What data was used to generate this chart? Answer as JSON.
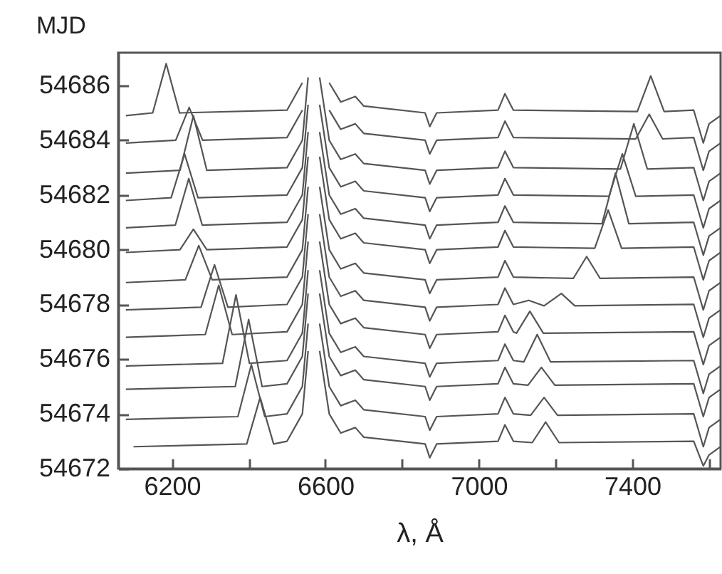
{
  "chart_data": {
    "type": "line",
    "xlabel": "λ, Å",
    "ylabel": "MJD",
    "xlim": [
      6060,
      7630
    ],
    "ylim": [
      54672,
      54687.2
    ],
    "xticks": [
      6200,
      {
        "value": 6400,
        "label": null
      },
      6600,
      {
        "value": 6800,
        "label": null
      },
      7000,
      {
        "value": 7200,
        "label": null
      },
      7400,
      {
        "value": 7600,
        "label": null
      }
    ],
    "yticks": [
      54672,
      54674,
      54676,
      54678,
      54680,
      54682,
      54684,
      54686
    ],
    "grid": false,
    "legend": false,
    "marker": "none",
    "line_style": "solid",
    "series": [
      {
        "color": "#555555",
        "x": [
          6080,
          6150,
          6185,
          6220,
          6500,
          6540,
          6555,
          6567,
          6585,
          6610,
          6640,
          6678,
          6700,
          6860,
          6872,
          6890,
          7050,
          7068,
          7090,
          7413,
          7448,
          7483,
          7560,
          7585,
          7600,
          7630
        ],
        "values": [
          54684.9,
          54685.0,
          54686.8,
          54685.0,
          54685.1,
          54686.1,
          null,
          null,
          null,
          54686.1,
          54685.4,
          54685.6,
          54685.25,
          54685.0,
          54684.5,
          54685.0,
          54685.1,
          54685.7,
          54685.1,
          54685.05,
          54686.35,
          54685.05,
          54685.1,
          54683.9,
          54684.6,
          54684.9
        ]
      },
      {
        "color": "#555555",
        "x": [
          6080,
          6210,
          6245,
          6280,
          6500,
          6540,
          6555,
          6567,
          6585,
          6610,
          6640,
          6678,
          6700,
          6860,
          6872,
          6890,
          7050,
          7068,
          7090,
          7409,
          7444,
          7479,
          7560,
          7585,
          7600,
          7630
        ],
        "values": [
          54683.9,
          54684.0,
          54685.2,
          54684.0,
          54684.1,
          54685.1,
          null,
          null,
          null,
          54685.1,
          54684.4,
          54684.6,
          54684.25,
          54684.0,
          54683.5,
          54684.0,
          54684.1,
          54684.7,
          54684.1,
          54684.05,
          54684.95,
          54684.05,
          54684.1,
          54682.9,
          54683.6,
          54683.9
        ]
      },
      {
        "color": "#555555",
        "x": [
          6080,
          6221,
          6256,
          6291,
          6500,
          6540,
          6555,
          6567,
          6585,
          6610,
          6640,
          6678,
          6700,
          6860,
          6872,
          6890,
          7050,
          7068,
          7090,
          7369,
          7404,
          7439,
          7560,
          7585,
          7600,
          7630
        ],
        "values": [
          54682.8,
          54682.9,
          54684.9,
          54682.9,
          54683.0,
          54684.0,
          54686.3,
          null,
          54686.3,
          54684.0,
          54683.3,
          54683.5,
          54683.15,
          54682.9,
          54682.4,
          54682.9,
          54683.0,
          54683.6,
          54683.0,
          54682.95,
          54684.6,
          54682.95,
          54683.0,
          54681.8,
          54682.5,
          54682.8
        ]
      },
      {
        "color": "#555555",
        "x": [
          6080,
          6198,
          6233,
          6268,
          6500,
          6540,
          6555,
          6567,
          6585,
          6610,
          6640,
          6678,
          6700,
          6860,
          6872,
          6890,
          7050,
          7068,
          7090,
          7339,
          7374,
          7409,
          7560,
          7585,
          7600,
          7630
        ],
        "values": [
          54681.8,
          54681.9,
          54683.5,
          54681.9,
          54682.0,
          54683.0,
          54685.3,
          null,
          54685.3,
          54683.0,
          54682.3,
          54682.5,
          54682.15,
          54681.9,
          54681.4,
          54681.9,
          54682.0,
          54682.6,
          54682.0,
          54681.95,
          54683.5,
          54681.95,
          54682.0,
          54680.8,
          54681.5,
          54681.8
        ]
      },
      {
        "color": "#555555",
        "x": [
          6080,
          6209,
          6244,
          6279,
          6500,
          6540,
          6555,
          6567,
          6585,
          6610,
          6640,
          6678,
          6700,
          6860,
          6872,
          6890,
          7050,
          7068,
          7090,
          7321,
          7356,
          7391,
          7560,
          7585,
          7600,
          7630
        ],
        "values": [
          54680.8,
          54680.9,
          54682.6,
          54680.9,
          54681.0,
          54682.0,
          54684.3,
          null,
          54684.3,
          54682.0,
          54681.3,
          54681.5,
          54681.15,
          54680.9,
          54680.4,
          54680.9,
          54681.0,
          54681.6,
          54681.0,
          54680.95,
          54682.8,
          54680.95,
          54681.0,
          54679.8,
          54680.5,
          54680.8
        ]
      },
      {
        "color": "#555555",
        "x": [
          6080,
          6221,
          6256,
          6291,
          6500,
          6540,
          6555,
          6567,
          6585,
          6610,
          6640,
          6678,
          6700,
          6860,
          6872,
          6890,
          7050,
          7068,
          7090,
          7302,
          7337,
          7372,
          7560,
          7585,
          7600,
          7630
        ],
        "values": [
          54679.9,
          54680.0,
          54680.75,
          54680.0,
          54680.1,
          54681.1,
          54683.4,
          null,
          54683.4,
          54681.1,
          54680.4,
          54680.6,
          54680.25,
          54680.0,
          54679.5,
          54680.0,
          54680.1,
          54680.7,
          54680.1,
          54680.05,
          54681.45,
          54680.05,
          54680.1,
          54678.9,
          54679.6,
          54679.9
        ]
      },
      {
        "color": "#555555",
        "x": [
          6080,
          6235,
          6270,
          6305,
          6500,
          6540,
          6555,
          6567,
          6585,
          6610,
          6640,
          6678,
          6700,
          6860,
          6872,
          6890,
          7050,
          7068,
          7090,
          7246,
          7281,
          7316,
          7560,
          7585,
          7600,
          7630
        ],
        "values": [
          54678.8,
          54678.9,
          54680.15,
          54678.9,
          54679.0,
          54680.0,
          54682.3,
          null,
          54682.3,
          54680.0,
          54679.3,
          54679.5,
          54679.15,
          54678.9,
          54678.4,
          54678.9,
          54679.0,
          54679.6,
          54679.0,
          54678.95,
          54679.75,
          54678.95,
          54679.0,
          54677.8,
          54678.5,
          54678.8
        ]
      },
      {
        "color": "#555555",
        "x": [
          6080,
          6276,
          6311,
          6346,
          6500,
          6540,
          6555,
          6567,
          6585,
          6610,
          6640,
          6678,
          6700,
          6860,
          6872,
          6890,
          7050,
          7068,
          7090,
          7130,
          7170,
          7215,
          7250,
          7560,
          7585,
          7600,
          7630
        ],
        "values": [
          54677.8,
          54677.9,
          54679.45,
          54677.9,
          54678.0,
          54679.0,
          54681.3,
          null,
          54681.3,
          54679.0,
          54678.3,
          54678.5,
          54678.15,
          54677.9,
          54677.4,
          54677.9,
          54678.0,
          54678.6,
          54678.0,
          54678.15,
          54677.95,
          54678.4,
          54677.95,
          54678.0,
          54676.8,
          54677.5,
          54677.8
        ]
      },
      {
        "color": "#555555",
        "x": [
          6080,
          6287,
          6322,
          6357,
          6500,
          6540,
          6555,
          6567,
          6585,
          6610,
          6640,
          6678,
          6700,
          6860,
          6872,
          6890,
          7050,
          7068,
          7090,
          7098,
          7133,
          7168,
          7560,
          7585,
          7600,
          7630
        ],
        "values": [
          54676.8,
          54676.9,
          54678.7,
          54676.9,
          54677.0,
          54678.0,
          54680.3,
          null,
          54680.3,
          54678.0,
          54677.3,
          54677.5,
          54677.15,
          54676.9,
          54676.4,
          54676.9,
          54677.0,
          54677.6,
          54677.0,
          54676.95,
          54677.75,
          54676.95,
          54677.0,
          54675.8,
          54676.5,
          54676.8
        ]
      },
      {
        "color": "#555555",
        "x": [
          6080,
          6332,
          6367,
          6402,
          6500,
          6540,
          6555,
          6567,
          6585,
          6610,
          6640,
          6678,
          6700,
          6860,
          6872,
          6890,
          7050,
          7068,
          7090,
          7117,
          7152,
          7187,
          7560,
          7585,
          7600,
          7630
        ],
        "values": [
          54675.75,
          54675.85,
          54678.35,
          54675.85,
          54675.95,
          54676.95,
          54679.25,
          null,
          54679.25,
          54676.95,
          54676.25,
          54676.45,
          54676.1,
          54675.85,
          54675.35,
          54675.85,
          54675.95,
          54676.55,
          54675.95,
          54675.9,
          54676.9,
          54675.9,
          54675.95,
          54674.75,
          54675.45,
          54675.75
        ]
      },
      {
        "color": "#555555",
        "x": [
          6080,
          6365,
          6400,
          6435,
          6500,
          6540,
          6555,
          6567,
          6585,
          6610,
          6640,
          6678,
          6700,
          6860,
          6872,
          6890,
          7050,
          7068,
          7090,
          7128,
          7163,
          7198,
          7560,
          7585,
          7600,
          7630
        ],
        "values": [
          54674.9,
          54675.0,
          54677.45,
          54675.0,
          54675.1,
          54676.1,
          54678.4,
          null,
          54678.4,
          54676.1,
          54675.4,
          54675.6,
          54675.25,
          54675.0,
          54674.5,
          54675.0,
          54675.1,
          54675.7,
          54675.1,
          54675.05,
          54675.7,
          54675.05,
          54675.1,
          54673.9,
          54674.6,
          54674.9
        ]
      },
      {
        "color": "#555555",
        "x": [
          6080,
          6372,
          6407,
          6442,
          6500,
          6540,
          6555,
          6567,
          6585,
          6610,
          6640,
          6678,
          6700,
          6860,
          6872,
          6890,
          7050,
          7068,
          7090,
          7135,
          7170,
          7205,
          7560,
          7585,
          7600,
          7630
        ],
        "values": [
          54673.8,
          54673.9,
          54675.8,
          54673.9,
          54674.0,
          54675.0,
          54677.3,
          null,
          54677.3,
          54675.0,
          54674.3,
          54674.5,
          54674.15,
          54673.9,
          54673.4,
          54673.9,
          54674.0,
          54674.6,
          54674.0,
          54673.95,
          54674.6,
          54673.95,
          54674.0,
          54672.8,
          54673.5,
          54673.8
        ]
      },
      {
        "color": "#555555",
        "x": [
          6100,
          6395,
          6430,
          6465,
          6500,
          6540,
          6555,
          6567,
          6585,
          6610,
          6640,
          6678,
          6700,
          6860,
          6872,
          6890,
          7050,
          7068,
          7090,
          7139,
          7174,
          7209,
          7560,
          7585,
          7600,
          7630
        ],
        "values": [
          54672.8,
          54672.9,
          54674.6,
          54672.9,
          54673.0,
          54674.0,
          54676.3,
          null,
          54676.3,
          54674.0,
          54673.3,
          54673.5,
          54673.15,
          54672.9,
          54672.4,
          54672.9,
          54673.0,
          54673.6,
          54673.0,
          54672.95,
          54673.7,
          54672.95,
          54673.0,
          54672.1,
          54672.5,
          54672.8
        ]
      }
    ]
  }
}
